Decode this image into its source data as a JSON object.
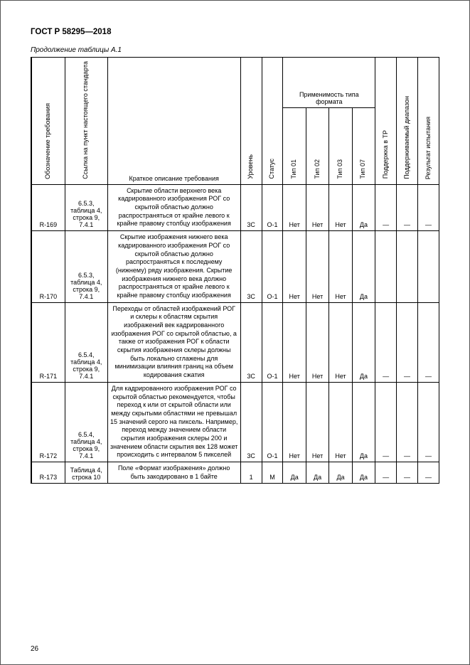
{
  "document": {
    "standard_code": "ГОСТ Р 58295—2018",
    "table_caption": "Продолжение таблицы А.1",
    "page_number": "26"
  },
  "headers": {
    "req_id": "Обозначение требования",
    "reference": "Ссылка на пункт настоящего стандарта",
    "description": "Краткое описание требования",
    "level": "Уровень",
    "status": "Статус",
    "format_applicability": "Применимость типа формата",
    "type01": "Тип 01",
    "type02": "Тип 02",
    "type03": "Тип 03",
    "type07": "Тип 07",
    "tr_support": "Поддержка в ТР",
    "supported_range": "Поддерживаемый диапазон",
    "test_result": "Результат испытания"
  },
  "rows": [
    {
      "id": "R-169",
      "ref": "6.5.3, таблица 4, строка 9, 7.4.1",
      "desc": "Скрытие области верхнего века кадрированного изображения РОГ со скрытой областью должно распространяться от крайне левого к крайне правому столбцу изображения",
      "level": "3C",
      "status": "O-1",
      "t01": "Нет",
      "t02": "Нет",
      "t03": "Нет",
      "t07": "Да",
      "tr": "—",
      "rng": "—",
      "res": "—"
    },
    {
      "id": "R-170",
      "ref": "6.5.3, таблица 4, строка 9, 7.4.1",
      "desc": "Скрытие изображения нижнего века кадрированного изображения РОГ со скрытой областью должно распространяться к последнему (нижнему) ряду изображения. Скрытие изображения нижнего века должно распространяться от крайне левого к крайне правому столбцу изображения",
      "level": "3C",
      "status": "O-1",
      "t01": "Нет",
      "t02": "Нет",
      "t03": "Нет",
      "t07": "Да",
      "tr": "",
      "rng": "",
      "res": ""
    },
    {
      "id": "R-171",
      "ref": "6.5.4, таблица 4, строка 9, 7.4.1",
      "desc": "Переходы от областей изображений РОГ и склеры к областям скрытия изображений век кадрированного изображения РОГ со скрытой областью, а также от изображения РОГ к области скрытия изображения склеры должны быть локально сглажены для минимизации влияния границ на объем кодирования сжатия",
      "level": "3C",
      "status": "O-1",
      "t01": "Нет",
      "t02": "Нет",
      "t03": "Нет",
      "t07": "Да",
      "tr": "—",
      "rng": "—",
      "res": "—"
    },
    {
      "id": "R-172",
      "ref": "6.5.4, таблица 4, строка 9, 7.4.1",
      "desc": "Для кадрированного изображения РОГ со скрытой областью рекомендуется, чтобы переход к или от скрытой области или между скрытыми областями не превышал 15 значений серого на пиксель. Например, переход между значением области скрытия изображения склеры 200 и значением области скрытия век 128 может происходить с интервалом 5 пикселей",
      "level": "3C",
      "status": "O-1",
      "t01": "Нет",
      "t02": "Нет",
      "t03": "Нет",
      "t07": "Да",
      "tr": "—",
      "rng": "—",
      "res": "—"
    },
    {
      "id": "R-173",
      "ref": "Таблица 4, строка 10",
      "desc": "Поле «Формат изображения» должно быть закодировано в 1 байте",
      "level": "1",
      "status": "M",
      "t01": "Да",
      "t02": "Да",
      "t03": "Да",
      "t07": "Да",
      "tr": "—",
      "rng": "—",
      "res": "—"
    }
  ]
}
